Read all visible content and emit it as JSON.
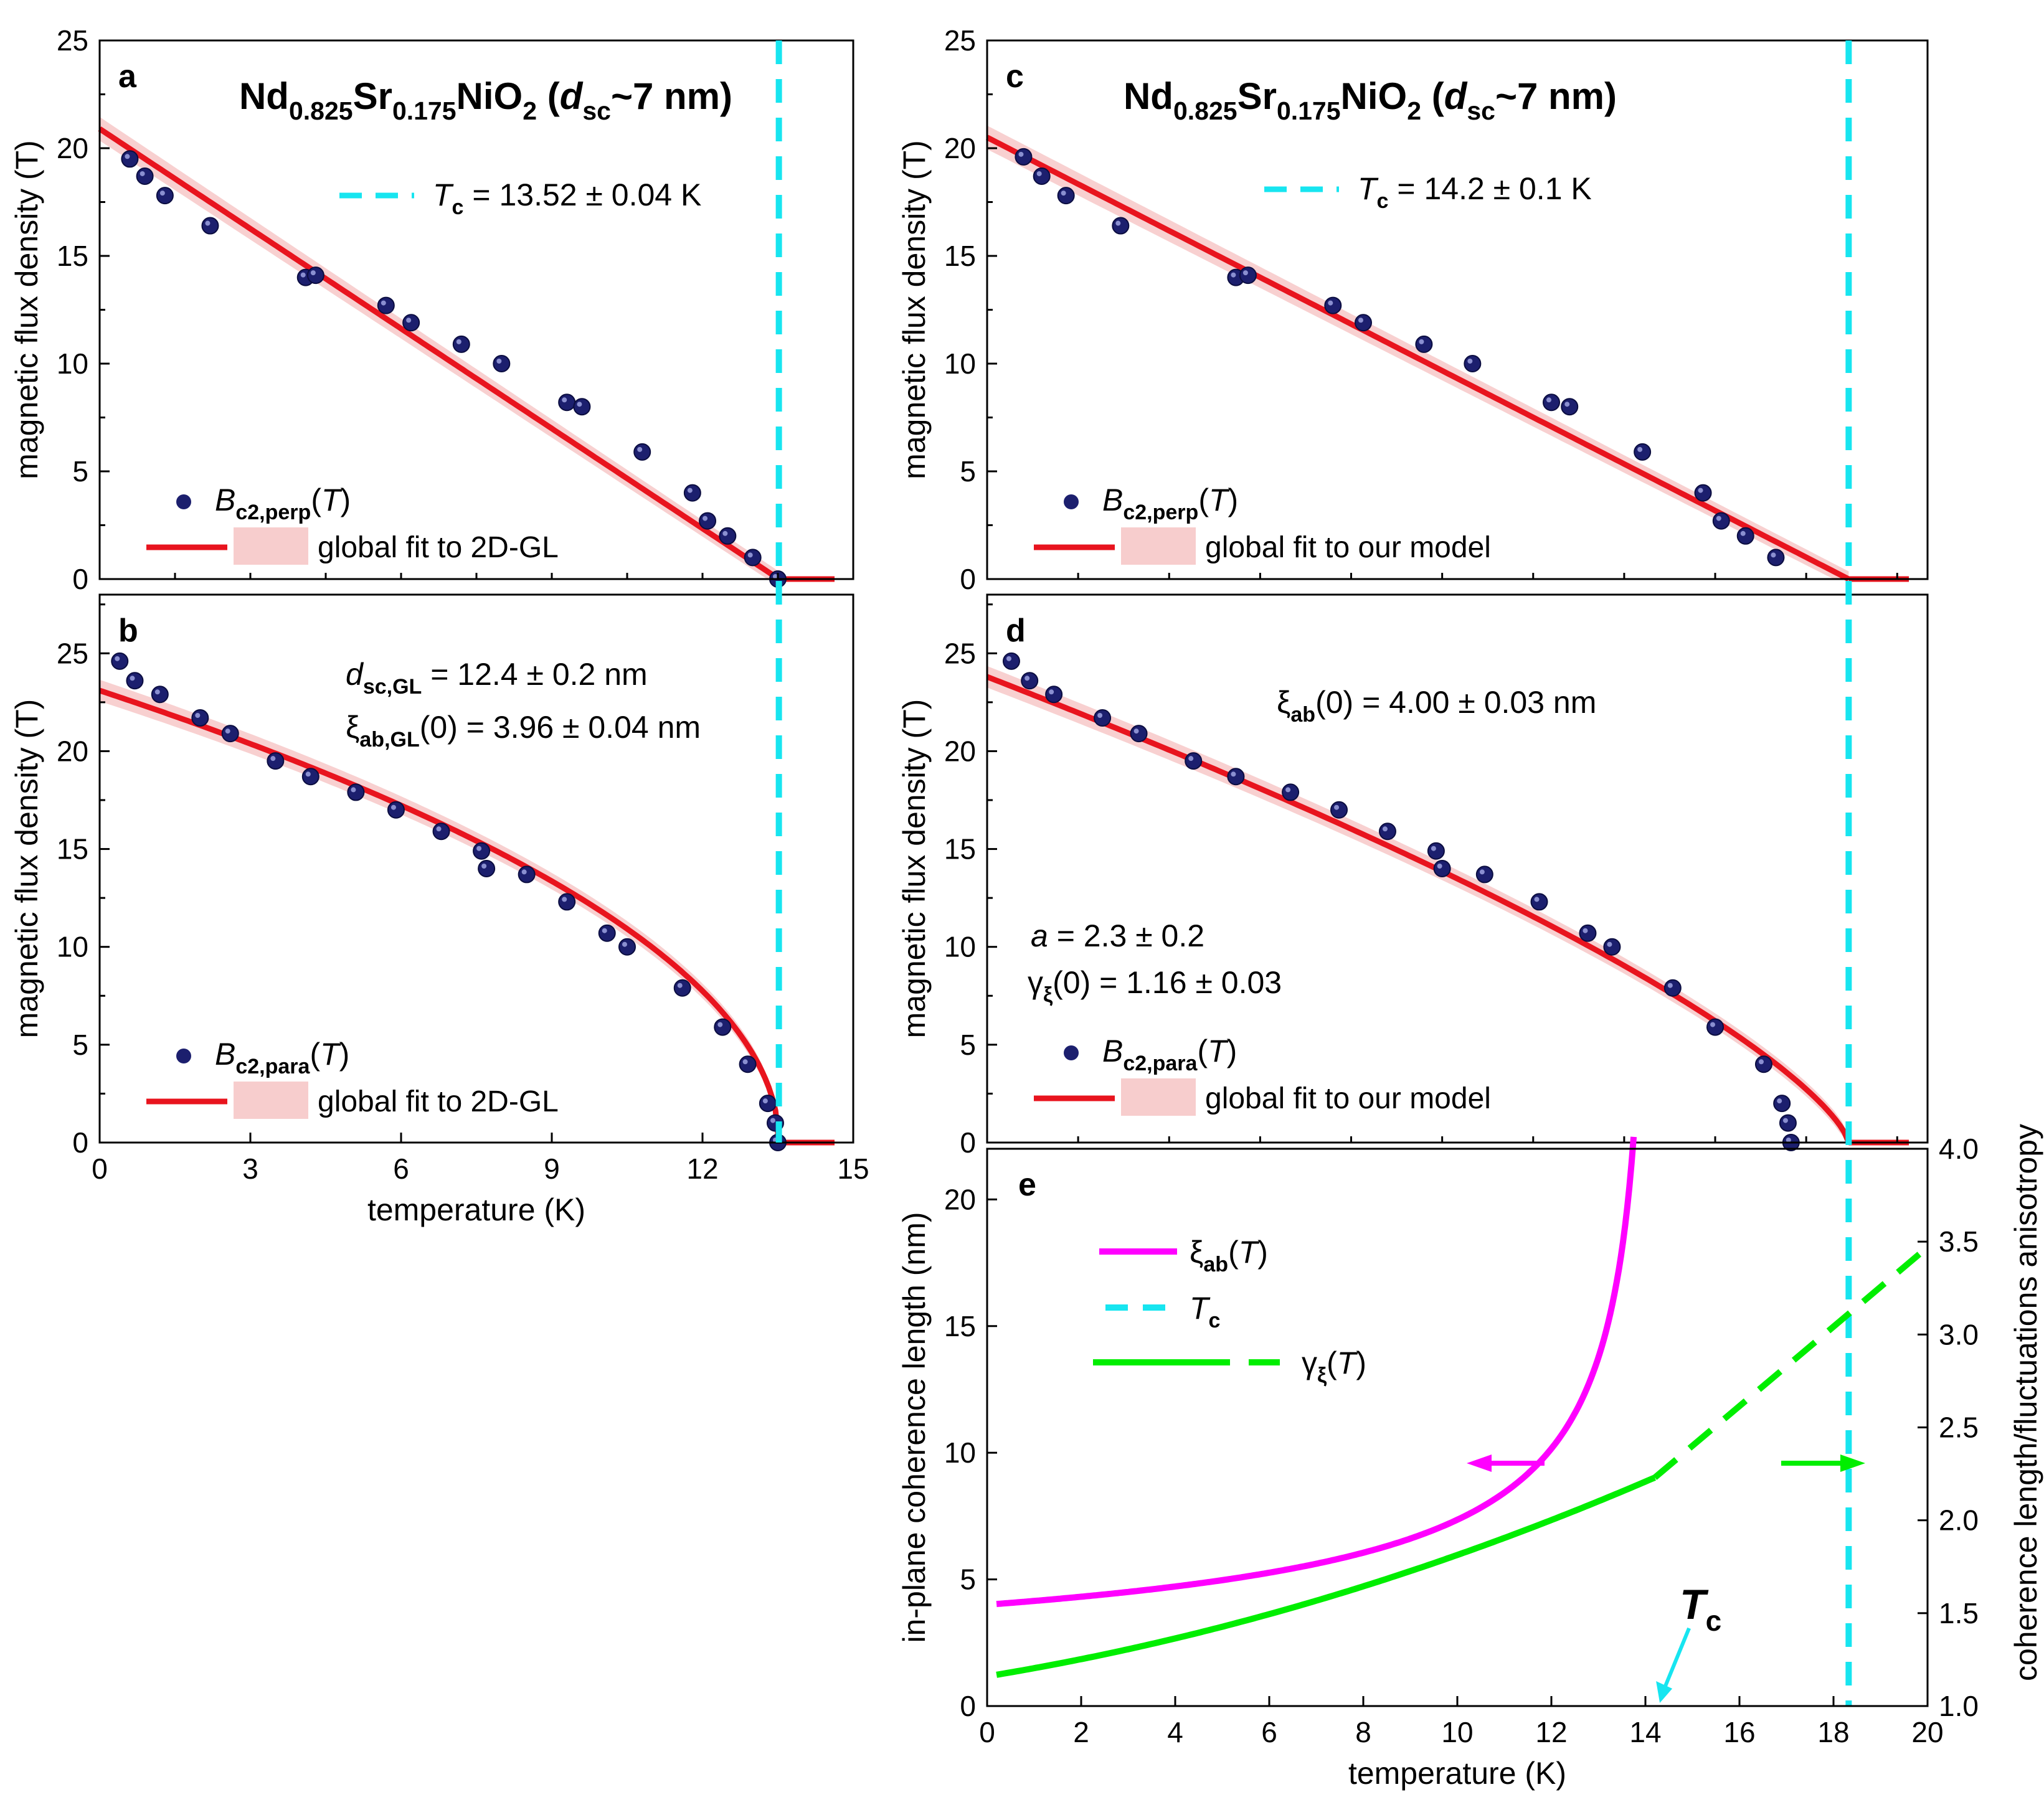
{
  "colors": {
    "data": "#1c1f6e",
    "fit": "#e8141e",
    "band": "#f5c0c0",
    "tc": "#17e5f0",
    "xi": "#ff00ff",
    "gamma": "#00ee00"
  },
  "chart_data": [
    {
      "id": "a",
      "type": "scatter",
      "panel_label": "a",
      "title_parts": {
        "base1": "Nd",
        "sub1": "0.825",
        "base2": "Sr",
        "sub2": "0.175",
        "base3": "NiO",
        "sub3": "2",
        "open": " (",
        "dsym": "d",
        "dsub": "sc",
        "close": "~7 nm)"
      },
      "ylabel": "magnetic flux density (T)",
      "xlim": [
        0,
        15
      ],
      "ylim": [
        0,
        25
      ],
      "yticks": [
        0,
        5,
        10,
        15,
        20,
        25
      ],
      "tc_annotation": {
        "sym": "T",
        "sub": "c",
        "text": " = 13.52 ± 0.04 K"
      },
      "tc": 13.52,
      "legend": {
        "points_sym": "B",
        "points_sub": "c2,perp",
        "points_arg": "(T)",
        "fit": "global fit to 2D-GL"
      },
      "points": [
        [
          0.6,
          19.5
        ],
        [
          0.9,
          18.7
        ],
        [
          1.3,
          17.8
        ],
        [
          2.2,
          16.4
        ],
        [
          4.1,
          14.0
        ],
        [
          4.3,
          14.1
        ],
        [
          5.7,
          12.7
        ],
        [
          6.2,
          11.9
        ],
        [
          7.2,
          10.9
        ],
        [
          8.0,
          10.0
        ],
        [
          9.3,
          8.2
        ],
        [
          9.6,
          8.0
        ],
        [
          10.8,
          5.9
        ],
        [
          11.8,
          4.0
        ],
        [
          12.1,
          2.7
        ],
        [
          12.5,
          2.0
        ],
        [
          13.0,
          1.0
        ],
        [
          13.5,
          0.0
        ]
      ],
      "fit_type": "linear",
      "fit_y0": 20.9
    },
    {
      "id": "b",
      "type": "scatter",
      "panel_label": "b",
      "ylabel": "magnetic flux density (T)",
      "xlabel": "temperature (K)",
      "xlim": [
        0,
        15
      ],
      "ylim": [
        0,
        28
      ],
      "yticks": [
        0,
        5,
        10,
        15,
        20,
        25
      ],
      "xticks": [
        0,
        3,
        6,
        9,
        12,
        15
      ],
      "annotations": [
        {
          "sym": "d",
          "sub": "sc,GL",
          "text": " = 12.4 ± 0.2 nm"
        },
        {
          "sym": "ξ",
          "sub": "ab,GL",
          "text": "(0) = 3.96 ± 0.04 nm"
        }
      ],
      "tc": 13.52,
      "legend": {
        "points_sym": "B",
        "points_sub": "c2,para",
        "points_arg": "(T)",
        "fit": "global fit to 2D-GL"
      },
      "points": [
        [
          0.4,
          24.6
        ],
        [
          0.7,
          23.6
        ],
        [
          1.2,
          22.9
        ],
        [
          2.0,
          21.7
        ],
        [
          2.6,
          20.9
        ],
        [
          3.5,
          19.5
        ],
        [
          4.2,
          18.7
        ],
        [
          5.1,
          17.9
        ],
        [
          5.9,
          17.0
        ],
        [
          6.8,
          15.9
        ],
        [
          7.6,
          14.9
        ],
        [
          7.7,
          14.0
        ],
        [
          8.5,
          13.7
        ],
        [
          9.3,
          12.3
        ],
        [
          10.1,
          10.7
        ],
        [
          10.5,
          10.0
        ],
        [
          11.6,
          7.9
        ],
        [
          12.4,
          5.9
        ],
        [
          12.9,
          4.0
        ],
        [
          13.3,
          2.0
        ],
        [
          13.45,
          1.0
        ],
        [
          13.5,
          0.0
        ]
      ],
      "fit_type": "sqrt",
      "fit_y0": 23.1
    },
    {
      "id": "c",
      "type": "scatter",
      "panel_label": "c",
      "title_parts": {
        "base1": "Nd",
        "sub1": "0.825",
        "base2": "Sr",
        "sub2": "0.175",
        "base3": "NiO",
        "sub3": "2",
        "open": " (",
        "dsym": "d",
        "dsub": "sc",
        "close": "~7 nm)"
      },
      "ylabel": "magnetic flux density (T)",
      "xlim": [
        0,
        15.5
      ],
      "ylim": [
        0,
        25
      ],
      "yticks": [
        0,
        5,
        10,
        15,
        20,
        25
      ],
      "tc_annotation": {
        "sym": "T",
        "sub": "c",
        "text": " = 14.2 ± 0.1 K"
      },
      "tc": 14.2,
      "legend": {
        "points_sym": "B",
        "points_sub": "c2,perp",
        "points_arg": "(T)",
        "fit": "global fit to our model"
      },
      "points": [
        [
          0.6,
          19.6
        ],
        [
          0.9,
          18.7
        ],
        [
          1.3,
          17.8
        ],
        [
          2.2,
          16.4
        ],
        [
          4.1,
          14.0
        ],
        [
          4.3,
          14.1
        ],
        [
          5.7,
          12.7
        ],
        [
          6.2,
          11.9
        ],
        [
          7.2,
          10.9
        ],
        [
          8.0,
          10.0
        ],
        [
          9.3,
          8.2
        ],
        [
          9.6,
          8.0
        ],
        [
          10.8,
          5.9
        ],
        [
          11.8,
          4.0
        ],
        [
          12.1,
          2.7
        ],
        [
          12.5,
          2.0
        ],
        [
          13.0,
          1.0
        ]
      ],
      "fit_type": "linear",
      "fit_y0": 20.5
    },
    {
      "id": "d",
      "type": "scatter",
      "panel_label": "d",
      "ylabel": "magnetic flux density (T)",
      "xlim": [
        0,
        15.5
      ],
      "ylim": [
        0,
        28
      ],
      "yticks": [
        0,
        5,
        10,
        15,
        20,
        25
      ],
      "annotations": [
        {
          "sym": "ξ",
          "sub": "ab",
          "text": "(0) = 4.00 ±  0.03 nm"
        },
        {
          "sym": "a",
          "sub": "",
          "text": " = 2.3 ± 0.2"
        },
        {
          "sym": "γ",
          "sub": "ξ",
          "text": "(0) = 1.16 ± 0.03"
        }
      ],
      "tc": 14.2,
      "legend": {
        "points_sym": "B",
        "points_sub": "c2,para",
        "points_arg": "(T)",
        "fit": "global fit to our model"
      },
      "points": [
        [
          0.4,
          24.6
        ],
        [
          0.7,
          23.6
        ],
        [
          1.1,
          22.9
        ],
        [
          1.9,
          21.7
        ],
        [
          2.5,
          20.9
        ],
        [
          3.4,
          19.5
        ],
        [
          4.1,
          18.7
        ],
        [
          5.0,
          17.9
        ],
        [
          5.8,
          17.0
        ],
        [
          6.6,
          15.9
        ],
        [
          7.4,
          14.9
        ],
        [
          7.5,
          14.0
        ],
        [
          8.2,
          13.7
        ],
        [
          9.1,
          12.3
        ],
        [
          9.9,
          10.7
        ],
        [
          10.3,
          10.0
        ],
        [
          11.3,
          7.9
        ],
        [
          12.0,
          5.9
        ],
        [
          12.8,
          4.0
        ],
        [
          13.1,
          2.0
        ],
        [
          13.2,
          1.0
        ],
        [
          13.25,
          0.0
        ]
      ],
      "fit_type": "power",
      "fit_y0": 23.8
    },
    {
      "id": "e",
      "type": "line",
      "panel_label": "e",
      "xlabel": "temperature (K)",
      "ylabel": "in-plane coherence length (nm)",
      "y2label": "coherence length/fluctuations anisotropy",
      "xlim": [
        0,
        20
      ],
      "ylim": [
        0,
        22
      ],
      "y2lim": [
        1.0,
        4.0
      ],
      "xticks": [
        0,
        2,
        4,
        6,
        8,
        10,
        12,
        14,
        16,
        18,
        20
      ],
      "yticks": [
        0,
        5,
        10,
        15,
        20
      ],
      "y2ticks": [
        "1.0",
        "1.5",
        "2.0",
        "2.5",
        "3.0",
        "3.5",
        "4.0"
      ],
      "tc": 14.2,
      "tc_label": {
        "sym": "T",
        "sub": "c"
      },
      "legend": [
        {
          "sym": "ξ",
          "sub": "ab",
          "arg": "(T)"
        },
        {
          "sym": "T",
          "sub": "c",
          "arg": ""
        },
        {
          "sym": "γ",
          "sub": "ξ",
          "arg": "(T)"
        }
      ],
      "series": [
        {
          "name": "ξab(T)",
          "axis": "left",
          "xi0": 4.0,
          "tc": 14.2
        },
        {
          "name": "γξ(T)",
          "axis": "right",
          "g0": 1.16,
          "g_tc": 2.23,
          "g_end": 3.47,
          "end_x": 20
        }
      ]
    }
  ]
}
